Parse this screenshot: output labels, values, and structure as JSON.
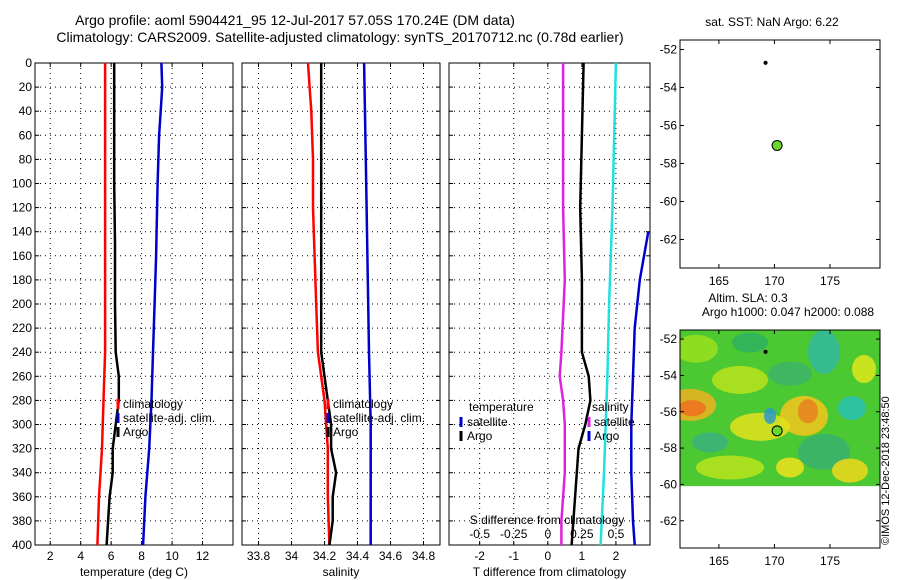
{
  "header": {
    "title_line1": "Argo profile: aoml 5904421_95 12-Jul-2017 57.05S 170.24E (DM data)",
    "title_line2": "Climatology: CARS2009. Satellite-adjusted climatology: synTS_20170712.nc (0.78d earlier)"
  },
  "watermark": "©IMOS 12-Dec-2018 23:48:50",
  "colors": {
    "climatology": "#ff0000",
    "satellite": "#0000cc",
    "argo": "#000000",
    "temp_diff": "#e020e0",
    "sal_diff": "#20e0e0"
  },
  "chart_data": [
    {
      "type": "line",
      "id": "temperature",
      "xlabel": "temperature (deg C)",
      "xlim": [
        1,
        14
      ],
      "xticks": [
        2,
        4,
        6,
        8,
        10,
        12
      ],
      "xtick_labels": [
        "2",
        "4",
        "6",
        "8",
        "10",
        "12"
      ],
      "ylim": [
        0,
        400
      ],
      "yticks": [
        0,
        20,
        40,
        60,
        80,
        100,
        120,
        140,
        160,
        180,
        200,
        220,
        240,
        260,
        280,
        300,
        320,
        340,
        360,
        380,
        400
      ],
      "ytick_labels": [
        "0",
        "20",
        "40",
        "60",
        "80",
        "100",
        "120",
        "140",
        "160",
        "180",
        "200",
        "220",
        "240",
        "260",
        "280",
        "300",
        "320",
        "340",
        "360",
        "380",
        "400"
      ],
      "legend": [
        "climatology",
        "satellite-adj. clim.",
        "Argo"
      ],
      "series": [
        {
          "name": "climatology",
          "color_key": "climatology",
          "depth": [
            0,
            40,
            100,
            160,
            200,
            240,
            280,
            320,
            360,
            400
          ],
          "values": [
            5.6,
            5.6,
            5.6,
            5.6,
            5.6,
            5.6,
            5.5,
            5.4,
            5.2,
            5.1
          ]
        },
        {
          "name": "satellite-adj. clim.",
          "color_key": "satellite",
          "depth": [
            0,
            20,
            40,
            60,
            100,
            160,
            200,
            240,
            280,
            320,
            360,
            400
          ],
          "values": [
            9.3,
            9.35,
            9.25,
            9.15,
            9.05,
            8.95,
            8.85,
            8.75,
            8.65,
            8.5,
            8.25,
            8.1
          ]
        },
        {
          "name": "Argo",
          "color_key": "argo",
          "depth": [
            0,
            50,
            100,
            150,
            200,
            240,
            260,
            280,
            300,
            320,
            340,
            360,
            380,
            400
          ],
          "values": [
            6.2,
            6.2,
            6.2,
            6.25,
            6.25,
            6.3,
            6.5,
            6.5,
            6.3,
            6.1,
            6.1,
            5.9,
            5.8,
            5.7
          ]
        }
      ]
    },
    {
      "type": "line",
      "id": "salinity",
      "xlabel": "salinity",
      "xlim": [
        33.7,
        34.9
      ],
      "xticks": [
        33.8,
        34,
        34.2,
        34.4,
        34.6,
        34.8
      ],
      "xtick_labels": [
        "33.8",
        "34",
        "34.2",
        "34.4",
        "34.6",
        "34.8"
      ],
      "ylim": [
        0,
        400
      ],
      "legend": [
        "climatology",
        "satellite-adj. clim.",
        "Argo"
      ],
      "series": [
        {
          "name": "climatology",
          "color_key": "climatology",
          "depth": [
            0,
            20,
            40,
            80,
            120,
            160,
            200,
            240,
            260,
            280,
            320,
            360,
            400
          ],
          "values": [
            34.1,
            34.11,
            34.12,
            34.13,
            34.13,
            34.14,
            34.15,
            34.16,
            34.18,
            34.2,
            34.22,
            34.22,
            34.23
          ]
        },
        {
          "name": "satellite-adj. clim.",
          "color_key": "satellite",
          "depth": [
            0,
            80,
            160,
            240,
            300,
            360,
            400
          ],
          "values": [
            34.44,
            34.45,
            34.46,
            34.47,
            34.48,
            34.48,
            34.48
          ]
        },
        {
          "name": "Argo",
          "color_key": "argo",
          "depth": [
            0,
            50,
            100,
            150,
            200,
            240,
            260,
            280,
            300,
            320,
            340,
            360,
            380,
            400
          ],
          "values": [
            34.18,
            34.18,
            34.18,
            34.18,
            34.18,
            34.18,
            34.2,
            34.22,
            34.24,
            34.24,
            34.27,
            34.25,
            34.25,
            34.23
          ]
        }
      ]
    },
    {
      "type": "line",
      "id": "difference",
      "xlabel": "T difference from climatology",
      "xlabel_top": "S difference from climatology",
      "xlim": [
        -2.9,
        3
      ],
      "xticks": [
        -2,
        -1,
        0,
        1,
        2
      ],
      "xtick_labels": [
        "-2",
        "-1",
        "0",
        "1",
        "2"
      ],
      "xticks_top_labels": [
        "-0.5",
        "-0.25",
        "0",
        "0.25",
        "0.5"
      ],
      "ylim": [
        0,
        400
      ],
      "legend_temperature_title": "temperature",
      "legend_salinity_title": "salinity",
      "legend": [
        "satellite",
        "Argo"
      ],
      "series": [
        {
          "name": "temperature satellite",
          "color_key": "temp_diff",
          "depth": [
            0,
            60,
            120,
            180,
            240,
            260,
            280,
            300,
            340,
            380,
            400
          ],
          "values": [
            0.45,
            0.45,
            0.45,
            0.5,
            0.4,
            0.35,
            0.45,
            0.5,
            0.5,
            0.4,
            0.4
          ]
        },
        {
          "name": "temperature Argo",
          "color_key": "argo",
          "depth": [
            0,
            60,
            120,
            180,
            240,
            260,
            280,
            300,
            320,
            360,
            400
          ],
          "values": [
            1.05,
            1.0,
            0.95,
            1.0,
            1.0,
            1.2,
            1.25,
            1.1,
            0.9,
            0.8,
            0.7
          ]
        },
        {
          "name": "salinity satellite",
          "color_key": "sal_diff",
          "depth": [
            0,
            60,
            120,
            160,
            200,
            260,
            300,
            340,
            400
          ],
          "values": [
            2.0,
            1.95,
            1.9,
            1.85,
            1.8,
            1.75,
            1.7,
            1.65,
            1.55
          ]
        },
        {
          "name": "salinity Argo",
          "color_key": "satellite",
          "depth": [
            140,
            180,
            220,
            260,
            300,
            340,
            380,
            400
          ],
          "values": [
            2.95,
            2.7,
            2.55,
            2.5,
            2.45,
            2.45,
            2.5,
            2.55
          ]
        }
      ]
    },
    {
      "type": "scatter",
      "id": "sst-map",
      "title": "sat. SST: NaN Argo: 6.22",
      "xlim": [
        161.5,
        179.5
      ],
      "xticks": [
        165,
        170,
        175
      ],
      "xtick_labels": [
        "165",
        "170",
        "175"
      ],
      "ylim": [
        -63.5,
        -51.5
      ],
      "yticks": [
        -52,
        -54,
        -56,
        -58,
        -60,
        -62
      ],
      "ytick_labels": [
        "-52",
        "-54",
        "-56",
        "-58",
        "-60",
        "-62"
      ],
      "points": [
        {
          "name": "previous-position",
          "x": 169.2,
          "y": -52.7
        },
        {
          "name": "argo-position",
          "x": 170.24,
          "y": -57.05
        }
      ]
    },
    {
      "type": "heatmap",
      "id": "sla-map",
      "title_line1": "Altim. SLA: 0.3",
      "title_line2": "Argo h1000: 0.047 h2000: 0.088",
      "xlim": [
        161.5,
        179.5
      ],
      "xticks": [
        165,
        170,
        175
      ],
      "xtick_labels": [
        "165",
        "170",
        "175"
      ],
      "ylim": [
        -63.5,
        -51.5
      ],
      "yticks": [
        -52,
        -54,
        -56,
        -58,
        -60,
        -62
      ],
      "ytick_labels": [
        "-52",
        "-54",
        "-56",
        "-58",
        "-60",
        "-62"
      ],
      "data_extent_lat": [
        -60.1,
        -51.5
      ],
      "points": [
        {
          "name": "previous-position",
          "x": 169.2,
          "y": -52.7
        },
        {
          "name": "argo-position",
          "x": 170.24,
          "y": -57.05
        }
      ]
    }
  ]
}
